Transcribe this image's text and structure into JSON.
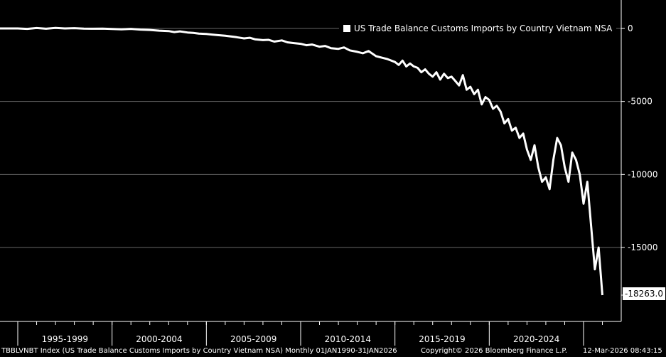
{
  "chart_data": {
    "type": "line",
    "title": "",
    "xlabel": "",
    "ylabel": "",
    "xlim": [
      1990.0,
      2026.2
    ],
    "ylim": [
      -20000,
      1500
    ],
    "yticks": [
      0,
      -5000,
      -10000,
      -15000
    ],
    "ytick_labels": [
      "0",
      "-5000",
      "-10000",
      "-15000"
    ],
    "x_period_labels": [
      "1995-1999",
      "2000-2004",
      "2005-2009",
      "2010-2014",
      "2015-2019",
      "2020-2024"
    ],
    "last_value_label": "-18263.0",
    "grid": true,
    "legend_position": "top-right",
    "line_color": "#ffffff",
    "series": [
      {
        "name": "US Trade Balance Customs Imports by Country Vietnam NSA",
        "x": [
          1995.0,
          1995.5,
          1996.0,
          1996.5,
          1997.0,
          1997.5,
          1998.0,
          1998.5,
          1999.0,
          1999.5,
          2000.0,
          2000.5,
          2001.0,
          2001.5,
          2002.0,
          2002.5,
          2003.0,
          2003.3,
          2003.6,
          2004.0,
          2004.3,
          2004.6,
          2005.0,
          2005.3,
          2005.6,
          2006.0,
          2006.3,
          2006.6,
          2007.0,
          2007.3,
          2007.6,
          2008.0,
          2008.3,
          2008.6,
          2009.0,
          2009.3,
          2009.6,
          2010.0,
          2010.3,
          2010.6,
          2011.0,
          2011.3,
          2011.6,
          2012.0,
          2012.3,
          2012.6,
          2013.0,
          2013.3,
          2013.6,
          2014.0,
          2014.3,
          2014.6,
          2015.0,
          2015.2,
          2015.4,
          2015.6,
          2015.8,
          2016.0,
          2016.2,
          2016.4,
          2016.6,
          2016.8,
          2017.0,
          2017.2,
          2017.4,
          2017.6,
          2017.8,
          2018.0,
          2018.2,
          2018.4,
          2018.6,
          2018.8,
          2019.0,
          2019.2,
          2019.4,
          2019.6,
          2019.8,
          2020.0,
          2020.2,
          2020.4,
          2020.6,
          2020.8,
          2021.0,
          2021.2,
          2021.4,
          2021.6,
          2021.8,
          2022.0,
          2022.2,
          2022.4,
          2022.6,
          2022.8,
          2023.0,
          2023.2,
          2023.4,
          2023.6,
          2023.8,
          2024.0,
          2024.2,
          2024.4,
          2024.6,
          2024.8,
          2025.0,
          2025.2,
          2025.4,
          2025.6,
          2025.8,
          2026.0
        ],
        "values": [
          0,
          -30,
          30,
          -20,
          40,
          0,
          20,
          -10,
          -20,
          -10,
          -40,
          -60,
          -30,
          -80,
          -100,
          -150,
          -180,
          -250,
          -200,
          -280,
          -300,
          -350,
          -380,
          -420,
          -460,
          -500,
          -550,
          -600,
          -680,
          -640,
          -750,
          -800,
          -780,
          -900,
          -820,
          -950,
          -1000,
          -1050,
          -1150,
          -1100,
          -1250,
          -1200,
          -1350,
          -1400,
          -1300,
          -1500,
          -1600,
          -1700,
          -1550,
          -1900,
          -2000,
          -2100,
          -2300,
          -2500,
          -2200,
          -2600,
          -2400,
          -2600,
          -2700,
          -3000,
          -2800,
          -3100,
          -3300,
          -3000,
          -3500,
          -3100,
          -3400,
          -3300,
          -3600,
          -3900,
          -3200,
          -4200,
          -4000,
          -4500,
          -4200,
          -5200,
          -4700,
          -4900,
          -5500,
          -5300,
          -5700,
          -6500,
          -6200,
          -7000,
          -6800,
          -7500,
          -7200,
          -8300,
          -9000,
          -8000,
          -9500,
          -10500,
          -10200,
          -11000,
          -9000,
          -7500,
          -8000,
          -9500,
          -10500,
          -8500,
          -9000,
          -10000,
          -12000,
          -10500,
          -13500,
          -16500,
          -15000,
          -18263
        ]
      }
    ]
  },
  "footer": {
    "left": "TBBLVNBT Index (US Trade Balance Customs Imports by Country Vietnam NSA) Monthly 01JAN1990-31JAN2026",
    "copyright": "Copyright© 2026 Bloomberg Finance L.P.",
    "timestamp": "12-Mar-2026 08:43:15"
  }
}
